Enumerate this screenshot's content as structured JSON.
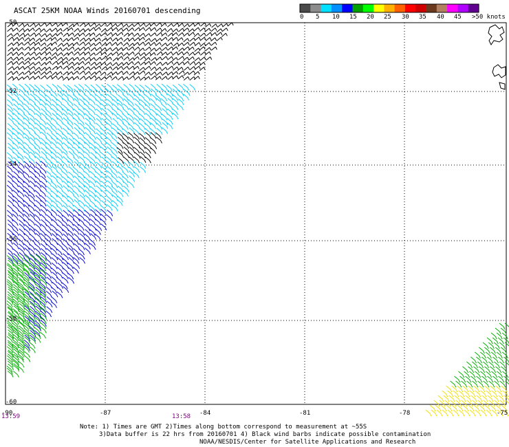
{
  "title": "ASCAT 25KM NOAA Winds 20160701 descending",
  "legend": {
    "swatches": [
      "#4a4a4a",
      "#8c8c8c",
      "#00e0ff",
      "#0090ff",
      "#0000ff",
      "#00a000",
      "#00ff00",
      "#ffff00",
      "#ffb000",
      "#ff6000",
      "#ff0000",
      "#d00000",
      "#6b3a1e",
      "#b08060",
      "#ff00ff",
      "#b000ff",
      "#600090"
    ],
    "ticks": [
      "0",
      "5",
      "10",
      "15",
      "20",
      "25",
      "30",
      "35",
      "40",
      "45",
      ">50 knots"
    ]
  },
  "axes": {
    "lon_labels": [
      "-90",
      "-87",
      "-84",
      "-81",
      "-78",
      "-75"
    ],
    "lat_labels": [
      "-50",
      "-52",
      "-54",
      "-56",
      "-58",
      "-60"
    ]
  },
  "times": [
    "13:59",
    "13:58"
  ],
  "notes": [
    "Note: 1) Times are GMT 2)Times along bottom correspond to measurement at ~55S",
    "3)Data buffer is 22 hrs from 20160701 4) Black wind barbs indicate possible contamination",
    "NOAA/NESDIS/Center for Satellite Applications and Research"
  ],
  "colors": {
    "contaminated": "#000000",
    "cyan": "#00d0ff",
    "blue": "#0000e0",
    "green": "#00b000",
    "yellow": "#f0e000"
  }
}
